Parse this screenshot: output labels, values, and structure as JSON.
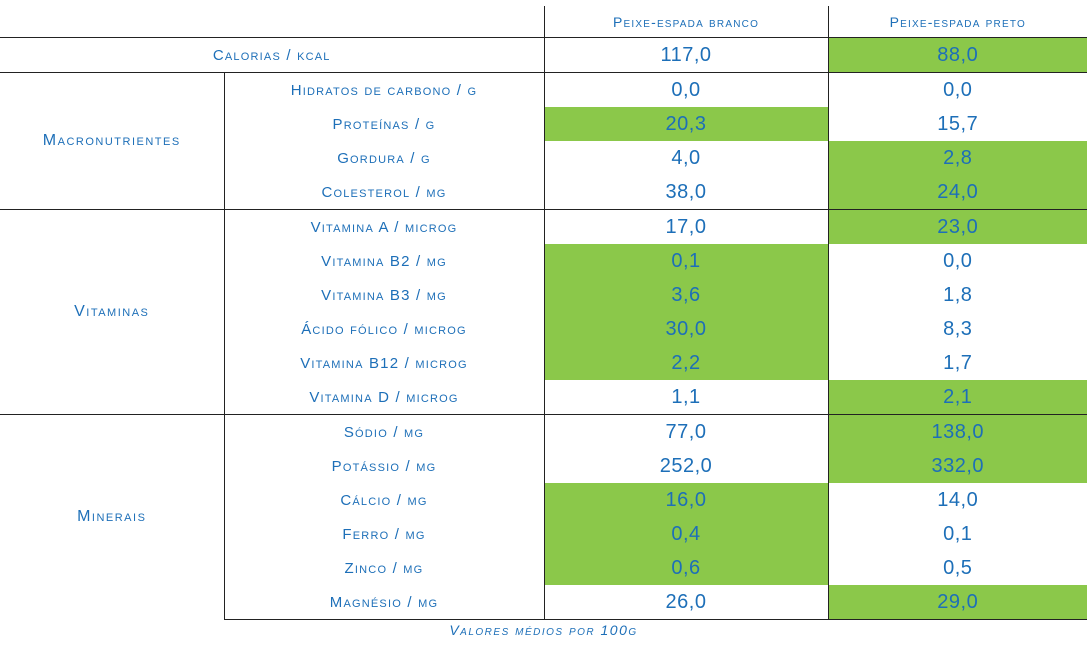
{
  "table": {
    "columns": [
      "Peixe-espada branco",
      "Peixe-espada preto"
    ],
    "highlight_color": "#8bc84a",
    "text_color": "#1d6fb8",
    "calories": {
      "label": "Calorias / kcal",
      "values": [
        "117,0",
        "88,0"
      ],
      "highlight": [
        false,
        true
      ]
    },
    "groups": [
      {
        "name": "Macronutrientes",
        "rows": [
          {
            "label": "Hidratos de carbono / g",
            "values": [
              "0,0",
              "0,0"
            ],
            "highlight": [
              false,
              false
            ]
          },
          {
            "label": "Proteínas / g",
            "values": [
              "20,3",
              "15,7"
            ],
            "highlight": [
              true,
              false
            ]
          },
          {
            "label": "Gordura / g",
            "values": [
              "4,0",
              "2,8"
            ],
            "highlight": [
              false,
              true
            ]
          },
          {
            "label": "Colesterol / mg",
            "values": [
              "38,0",
              "24,0"
            ],
            "highlight": [
              false,
              true
            ]
          }
        ]
      },
      {
        "name": "Vitaminas",
        "rows": [
          {
            "label": "Vitamina A / microg",
            "values": [
              "17,0",
              "23,0"
            ],
            "highlight": [
              false,
              true
            ]
          },
          {
            "label": "Vitamina B2 / mg",
            "values": [
              "0,1",
              "0,0"
            ],
            "highlight": [
              true,
              false
            ]
          },
          {
            "label": "Vitamina B3 / mg",
            "values": [
              "3,6",
              "1,8"
            ],
            "highlight": [
              true,
              false
            ]
          },
          {
            "label": "Ácido fólico / microg",
            "values": [
              "30,0",
              "8,3"
            ],
            "highlight": [
              true,
              false
            ]
          },
          {
            "label": "Vitamina B12 / microg",
            "values": [
              "2,2",
              "1,7"
            ],
            "highlight": [
              true,
              false
            ]
          },
          {
            "label": "Vitamina D / microg",
            "values": [
              "1,1",
              "2,1"
            ],
            "highlight": [
              false,
              true
            ]
          }
        ]
      },
      {
        "name": "Minerais",
        "rows": [
          {
            "label": "Sódio / mg",
            "values": [
              "77,0",
              "138,0"
            ],
            "highlight": [
              false,
              true
            ]
          },
          {
            "label": "Potássio / mg",
            "values": [
              "252,0",
              "332,0"
            ],
            "highlight": [
              false,
              true
            ]
          },
          {
            "label": "Cálcio / mg",
            "values": [
              "16,0",
              "14,0"
            ],
            "highlight": [
              true,
              false
            ]
          },
          {
            "label": "Ferro / mg",
            "values": [
              "0,4",
              "0,1"
            ],
            "highlight": [
              true,
              false
            ]
          },
          {
            "label": "Zinco / mg",
            "values": [
              "0,6",
              "0,5"
            ],
            "highlight": [
              true,
              false
            ]
          },
          {
            "label": "Magnésio / mg",
            "values": [
              "26,0",
              "29,0"
            ],
            "highlight": [
              false,
              true
            ]
          }
        ]
      }
    ]
  },
  "footnote": "Valores médios por 100g"
}
